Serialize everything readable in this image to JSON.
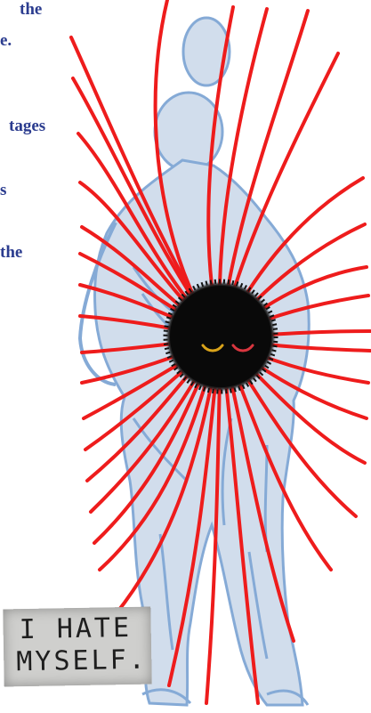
{
  "text_lines": [
    "the",
    "e.",
    "tages",
    "s",
    "the"
  ],
  "sign": {
    "lines": [
      "I HATE",
      "MYSELF."
    ]
  },
  "colors": {
    "text": "#2b3c8f",
    "rays": "#ee1c1c",
    "figure": "#7fa6d4",
    "blob": "#080808",
    "left_eye": "#d9a31a",
    "right_eye": "#d9363f"
  }
}
